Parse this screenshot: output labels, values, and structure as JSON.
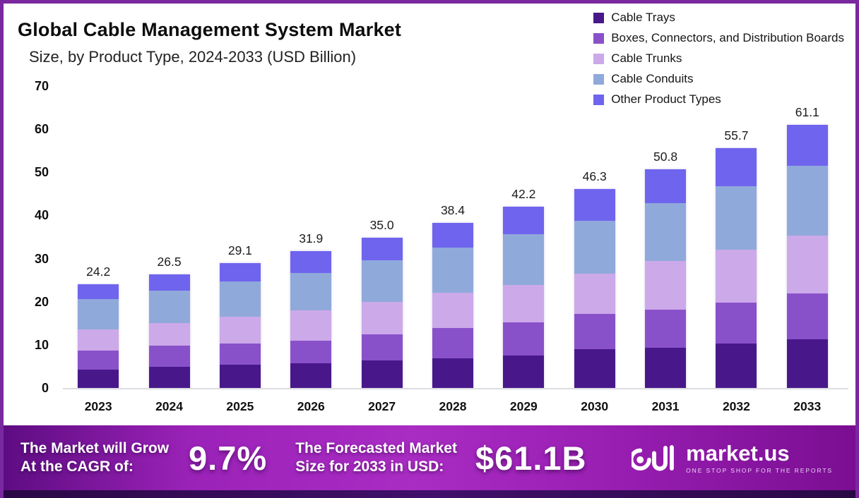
{
  "title": "Global Cable Management System Market",
  "subtitle": "Size, by Product Type, 2024-2033 (USD Billion)",
  "chart_data": {
    "type": "bar",
    "stacked": true,
    "title": "Global Cable Management System Market Size, by Product Type, 2024-2033 (USD Billion)",
    "categories": [
      "2023",
      "2024",
      "2025",
      "2026",
      "2027",
      "2028",
      "2029",
      "2030",
      "2031",
      "2032",
      "2033"
    ],
    "totals": [
      "24.2",
      "26.5",
      "29.1",
      "31.9",
      "35.0",
      "38.4",
      "42.2",
      "46.3",
      "50.8",
      "55.7",
      "61.1"
    ],
    "series": [
      {
        "name": "Cable Trays",
        "color": "#48188A",
        "values": [
          4.4,
          5.0,
          5.5,
          5.9,
          6.6,
          7.0,
          7.7,
          9.2,
          9.5,
          10.5,
          11.5
        ]
      },
      {
        "name": "Boxes, Connectors, and Distribution Boards",
        "color": "#8951C9",
        "values": [
          4.5,
          4.9,
          4.9,
          5.2,
          6.0,
          7.0,
          7.7,
          8.1,
          8.8,
          9.4,
          10.6
        ]
      },
      {
        "name": "Cable Trunks",
        "color": "#CCA9E9",
        "values": [
          4.9,
          5.3,
          6.3,
          7.1,
          7.5,
          8.2,
          8.6,
          9.4,
          11.3,
          12.4,
          13.4
        ]
      },
      {
        "name": "Cable Conduits",
        "color": "#90A9DB",
        "values": [
          6.9,
          7.6,
          8.2,
          8.6,
          9.6,
          10.6,
          11.8,
          12.2,
          13.4,
          14.7,
          16.2
        ]
      },
      {
        "name": "Other Product Types",
        "color": "#6F64EE",
        "values": [
          3.5,
          3.7,
          4.2,
          5.1,
          5.3,
          5.6,
          6.4,
          7.4,
          7.8,
          8.7,
          9.4
        ]
      }
    ],
    "y_axis": {
      "min": 0,
      "max": 70,
      "step": 10,
      "ticks": [
        "0",
        "10",
        "20",
        "30",
        "40",
        "50",
        "60",
        "70"
      ]
    },
    "xlabel": "",
    "ylabel": "",
    "legend_position": "top-right",
    "grid": false
  },
  "banner": {
    "growth_label_line1": "The Market will Grow",
    "growth_label_line2": "At the CAGR of:",
    "cagr_value": "9.7%",
    "forecast_label_line1": "The Forecasted Market",
    "forecast_label_line2": "Size for 2033 in USD:",
    "forecast_value": "$61.1B"
  },
  "brand": {
    "name": "market.us",
    "tagline": "ONE STOP SHOP FOR THE REPORTS"
  }
}
